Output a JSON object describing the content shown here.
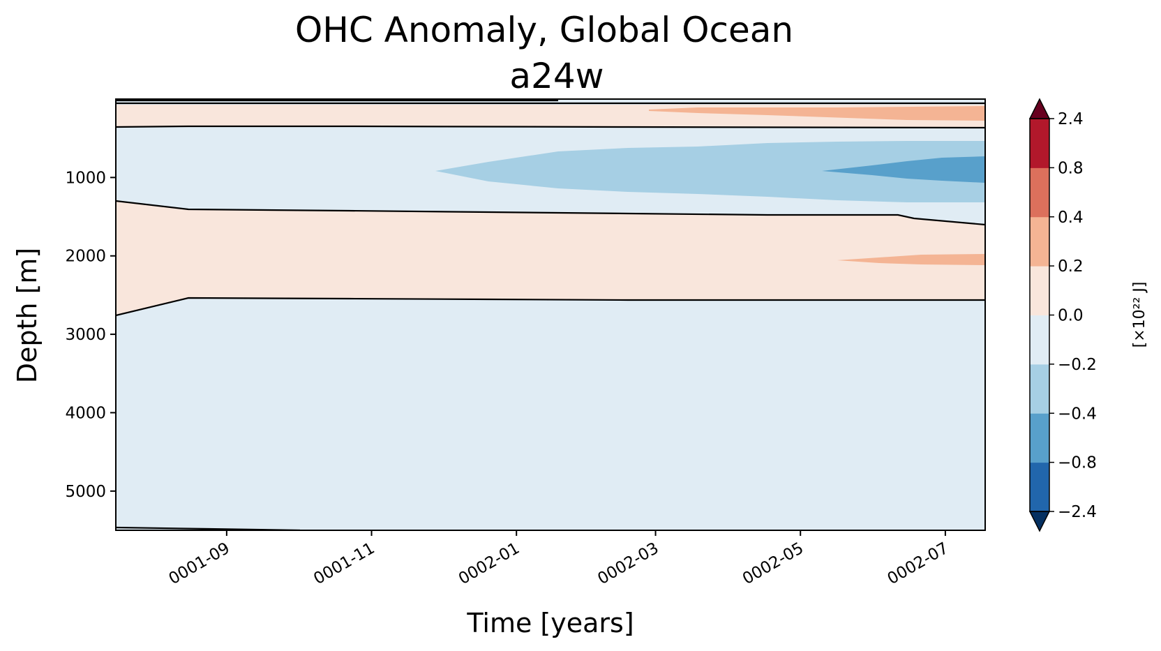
{
  "chart_data": {
    "type": "heatmap",
    "subtype": "filled-contour",
    "title": "OHC Anomaly, Global Ocean",
    "subtitle": "a24w",
    "xlabel": "Time [years]",
    "ylabel": "Depth [m]",
    "x_tick_labels": [
      "0001-09",
      "0001-11",
      "0002-01",
      "0002-03",
      "0002-05",
      "0002-07"
    ],
    "x_ticks_months": [
      1.53,
      3.53,
      5.53,
      7.45,
      9.45,
      11.45
    ],
    "xlim_months": [
      0,
      12
    ],
    "y_ticks": [
      1000,
      2000,
      3000,
      4000,
      5000
    ],
    "ylim": [
      0,
      5500
    ],
    "y_inverted": true,
    "colorbar": {
      "label": "[×10²² J]",
      "tick_labels": [
        "2.4",
        "0.8",
        "0.4",
        "0.2",
        "0.0",
        "−0.2",
        "−0.4",
        "−0.8",
        "−2.4"
      ],
      "levels": [
        -2.4,
        -0.8,
        -0.4,
        -0.2,
        0.0,
        0.2,
        0.4,
        0.8,
        2.4
      ],
      "colors": [
        "#2166ac",
        "#4393c3",
        "#92c5de",
        "#d1e5f0",
        "#fddbc7",
        "#f4a582",
        "#d6604d",
        "#b2182b"
      ],
      "display_colors": [
        "#2166ac",
        "#58a0cb",
        "#a6cfe4",
        "#e0ecf4",
        "#f9e6dc",
        "#f4b494",
        "#dc705c",
        "#b2182b"
      ],
      "under_color": "#053061",
      "over_color": "#67001f",
      "extend": "both"
    },
    "regions": [
      {
        "level": "0.0 to 0.2",
        "depth_m": [
          80,
          370
        ],
        "time": "all"
      },
      {
        "level": "0.2 to 0.4",
        "depth_m": [
          120,
          280
        ],
        "time": "0002-03 to 0002-07"
      },
      {
        "level": "-0.2 to 0.0",
        "depth_m": [
          370,
          1400
        ],
        "time": "all"
      },
      {
        "level": "-0.4 to -0.2",
        "depth_m": [
          600,
          1300
        ],
        "time": "0001-12 to 0002-07"
      },
      {
        "level": "-0.8 to -0.4",
        "depth_m": [
          730,
          1100
        ],
        "time": "0002-05 to 0002-07"
      },
      {
        "level": "0.0 to 0.2",
        "depth_m": [
          1400,
          2580
        ],
        "time": "all"
      },
      {
        "level": "0.2 to 0.4",
        "depth_m": [
          1990,
          2150
        ],
        "time": "0002-05 to 0002-07"
      },
      {
        "level": "-0.2 to 0.0",
        "depth_m": [
          2580,
          5500
        ],
        "time": "all"
      }
    ]
  }
}
